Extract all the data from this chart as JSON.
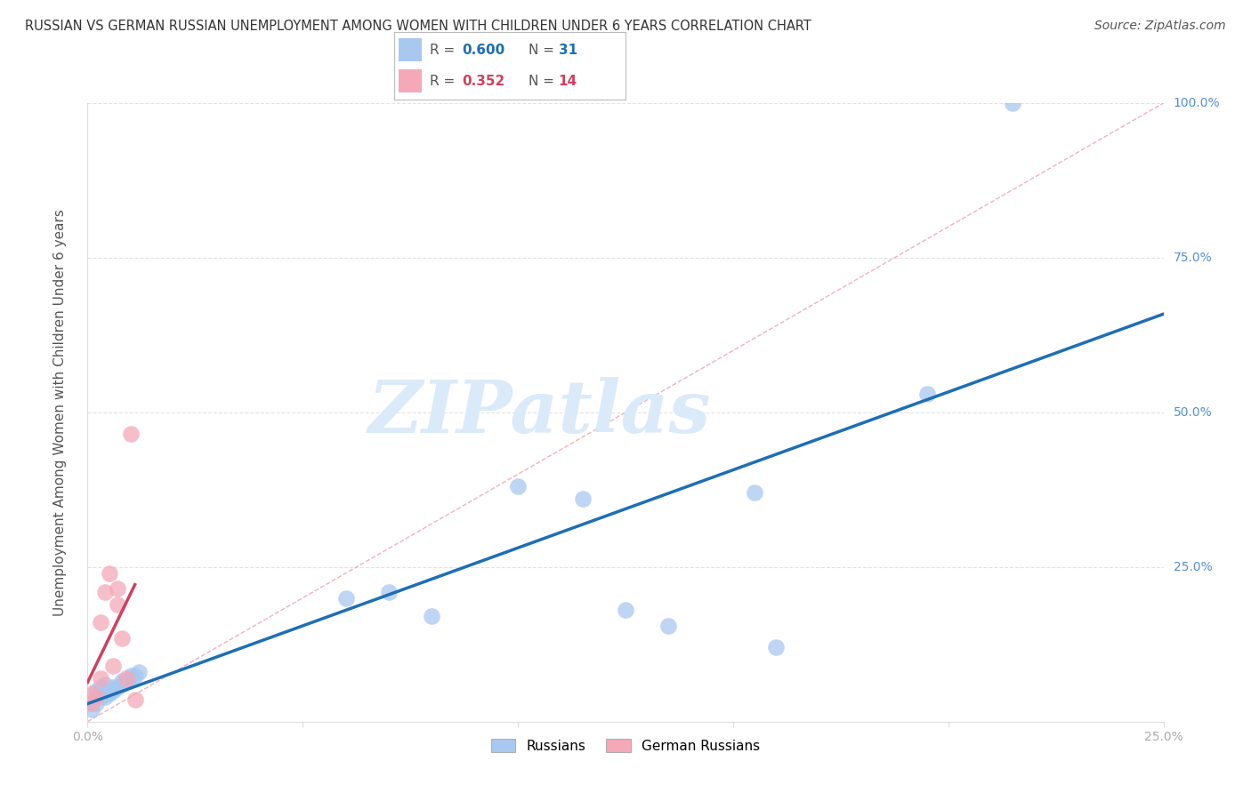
{
  "title": "RUSSIAN VS GERMAN RUSSIAN UNEMPLOYMENT AMONG WOMEN WITH CHILDREN UNDER 6 YEARS CORRELATION CHART",
  "source": "Source: ZipAtlas.com",
  "ylabel": "Unemployment Among Women with Children Under 6 years",
  "xlim": [
    0.0,
    0.25
  ],
  "ylim": [
    0.0,
    1.0
  ],
  "xticks": [
    0.0,
    0.05,
    0.1,
    0.15,
    0.2,
    0.25
  ],
  "yticks": [
    0.0,
    0.25,
    0.5,
    0.75,
    1.0
  ],
  "xtick_labels": [
    "0.0%",
    "",
    "",
    "",
    "",
    "25.0%"
  ],
  "ytick_labels_right": [
    "",
    "25.0%",
    "50.0%",
    "75.0%",
    "100.0%"
  ],
  "russians_x": [
    0.001,
    0.001,
    0.002,
    0.002,
    0.003,
    0.003,
    0.004,
    0.004,
    0.005,
    0.005,
    0.006,
    0.006,
    0.007,
    0.008,
    0.008,
    0.009,
    0.01,
    0.01,
    0.011,
    0.012,
    0.06,
    0.07,
    0.08,
    0.1,
    0.115,
    0.125,
    0.135,
    0.155,
    0.16,
    0.195,
    0.215
  ],
  "russians_y": [
    0.02,
    0.03,
    0.03,
    0.05,
    0.04,
    0.055,
    0.04,
    0.06,
    0.045,
    0.05,
    0.05,
    0.055,
    0.055,
    0.06,
    0.065,
    0.065,
    0.07,
    0.075,
    0.075,
    0.08,
    0.2,
    0.21,
    0.17,
    0.38,
    0.36,
    0.18,
    0.155,
    0.37,
    0.12,
    0.53,
    1.0
  ],
  "german_russians_x": [
    0.001,
    0.001,
    0.002,
    0.003,
    0.003,
    0.004,
    0.005,
    0.006,
    0.007,
    0.007,
    0.008,
    0.009,
    0.01,
    0.011
  ],
  "german_russians_y": [
    0.03,
    0.045,
    0.04,
    0.07,
    0.16,
    0.21,
    0.24,
    0.09,
    0.19,
    0.215,
    0.135,
    0.07,
    0.465,
    0.035
  ],
  "russians_color": "#a8c8f0",
  "russians_edge_color": "#7aaad4",
  "german_russians_color": "#f4a8b8",
  "german_russians_edge_color": "#e07090",
  "russians_line_color": "#1e6eb5",
  "german_russians_line_color": "#d04060",
  "russians_R": 0.6,
  "russians_N": 31,
  "german_russians_R": 0.352,
  "german_russians_N": 14,
  "diagonal_color": "#e8a0b0",
  "grid_color": "#dddddd",
  "watermark_text": "ZIPatlas",
  "watermark_color": "#daeaf8",
  "marker_size": 180,
  "background_color": "#ffffff",
  "title_color": "#333333",
  "axis_label_color": "#555555",
  "tick_color": "#aaaaaa",
  "right_tick_color": "#5590cc"
}
